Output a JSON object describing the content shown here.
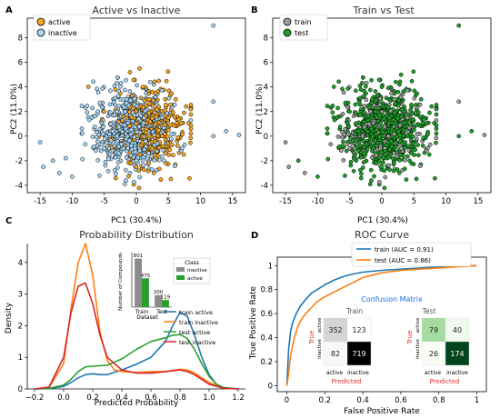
{
  "colors": {
    "active_orange": "#f5a623",
    "inactive_blue": "#a9d6f5",
    "train_gray": "#9e9e9e",
    "test_green": "#1f9e2a",
    "line_blue": "#1f77b4",
    "line_orange": "#ff7f0e",
    "line_green": "#2ca02c",
    "line_red": "#d62728",
    "cm_title_blue": "#1a6fd6",
    "cm_label_red": "#e03030"
  },
  "chart_data": [
    {
      "panel": "A",
      "type": "scatter",
      "title": "Active vs Inactive",
      "xlabel": "PC1 (30.4%)",
      "ylabel": "PC2 (11.0%)",
      "xlim": [
        -17,
        17
      ],
      "ylim": [
        -4.6,
        9.6
      ],
      "xticks": [
        -15,
        -10,
        -5,
        0,
        5,
        10,
        15
      ],
      "yticks": [
        -4,
        -2,
        0,
        2,
        4,
        6,
        8
      ],
      "legend_position": "top-left",
      "series": [
        {
          "name": "active",
          "color": "#f5a623",
          "points": [
            [
              2,
              3
            ],
            [
              3,
              1
            ],
            [
              4,
              2
            ],
            [
              1,
              4
            ],
            [
              0.5,
              5.5
            ],
            [
              3.5,
              4.5
            ],
            [
              2.5,
              -1
            ],
            [
              4,
              0
            ],
            [
              5,
              1.5
            ],
            [
              -1,
              5.2
            ],
            [
              1.5,
              2.5
            ],
            [
              3,
              3.5
            ],
            [
              4.5,
              3
            ],
            [
              2,
              0
            ],
            [
              0,
              1
            ]
          ]
        },
        {
          "name": "inactive",
          "color": "#a9d6f5",
          "points": [
            [
              -3,
              0
            ],
            [
              -5,
              -1
            ],
            [
              -4,
              1
            ],
            [
              -2,
              3
            ],
            [
              0,
              -2
            ],
            [
              -1,
              -3
            ],
            [
              -6,
              2
            ],
            [
              -2,
              -1
            ],
            [
              1,
              -2
            ],
            [
              -3,
              2
            ],
            [
              -15,
              -0.5
            ],
            [
              -14.5,
              -2.5
            ],
            [
              -12,
              -3
            ],
            [
              -13,
              -2
            ],
            [
              -10,
              -3.3
            ],
            [
              -11,
              -1.8
            ],
            [
              12,
              9
            ],
            [
              12,
              2.8
            ],
            [
              14,
              0.4
            ],
            [
              16,
              0.1
            ],
            [
              12,
              0
            ]
          ]
        }
      ]
    },
    {
      "panel": "B",
      "type": "scatter",
      "title": "Train vs Test",
      "xlabel": "PC1 (30.4%)",
      "ylabel": "PC2 (11.0%)",
      "xlim": [
        -17,
        17
      ],
      "ylim": [
        -4.6,
        9.6
      ],
      "xticks": [
        -15,
        -10,
        -5,
        0,
        5,
        10,
        15
      ],
      "yticks": [
        -4,
        -2,
        0,
        2,
        4,
        6,
        8
      ],
      "legend_position": "top-left",
      "series": [
        {
          "name": "train",
          "color": "#9e9e9e",
          "points": [
            [
              -3,
              0
            ],
            [
              -5,
              -1
            ],
            [
              0,
              2
            ],
            [
              2,
              3
            ],
            [
              -2,
              1
            ],
            [
              3,
              -1
            ],
            [
              1,
              0
            ],
            [
              -15,
              -0.5
            ],
            [
              -14.5,
              -2.5
            ],
            [
              -12,
              -3
            ],
            [
              12,
              2.8
            ],
            [
              16,
              0.1
            ]
          ]
        },
        {
          "name": "test",
          "color": "#1f9e2a",
          "points": [
            [
              2,
              1
            ],
            [
              -1,
              2
            ],
            [
              4,
              0
            ],
            [
              -4,
              -2
            ],
            [
              0,
              4
            ],
            [
              3,
              5
            ],
            [
              -13,
              -2
            ],
            [
              -10,
              -3.3
            ],
            [
              12,
              9
            ],
            [
              14,
              0.4
            ],
            [
              12,
              0
            ]
          ]
        }
      ]
    },
    {
      "panel": "C",
      "type": "line",
      "title": "Probability Distribution",
      "xlabel": "Predicted Probability",
      "ylabel": "Density",
      "xlim": [
        -0.25,
        1.25
      ],
      "ylim": [
        0,
        4.6
      ],
      "xticks": [
        -0.2,
        0.0,
        0.2,
        0.4,
        0.6,
        0.8,
        1.0,
        1.2
      ],
      "xtick_labels": [
        "−0.2",
        "0.0",
        "0.2",
        "0.4",
        "0.6",
        "0.8",
        "1.0",
        "1.2"
      ],
      "yticks": [
        0,
        1,
        2,
        3,
        4
      ],
      "legend_position": "center-right",
      "series": [
        {
          "name": "train active",
          "color": "#1f77b4",
          "x": [
            -0.2,
            -0.1,
            0.0,
            0.05,
            0.1,
            0.15,
            0.2,
            0.25,
            0.3,
            0.4,
            0.5,
            0.6,
            0.7,
            0.75,
            0.8,
            0.85,
            0.9,
            0.95,
            1.0,
            1.05,
            1.1,
            1.2
          ],
          "y": [
            0,
            0.01,
            0.08,
            0.2,
            0.35,
            0.45,
            0.48,
            0.45,
            0.45,
            0.6,
            0.78,
            1.0,
            1.5,
            2.0,
            2.42,
            2.3,
            1.7,
            1.0,
            0.45,
            0.15,
            0.04,
            0
          ]
        },
        {
          "name": "train inactive",
          "color": "#ff7f0e",
          "x": [
            -0.2,
            -0.1,
            0.0,
            0.05,
            0.1,
            0.15,
            0.2,
            0.25,
            0.3,
            0.35,
            0.4,
            0.5,
            0.6,
            0.7,
            0.8,
            0.85,
            0.9,
            1.0,
            1.1,
            1.2
          ],
          "y": [
            0,
            0.05,
            0.8,
            2.5,
            4.0,
            4.6,
            3.6,
            1.8,
            0.9,
            0.6,
            0.55,
            0.52,
            0.55,
            0.55,
            0.62,
            0.6,
            0.5,
            0.2,
            0.03,
            0
          ]
        },
        {
          "name": "test active",
          "color": "#2ca02c",
          "x": [
            -0.2,
            -0.1,
            0.0,
            0.05,
            0.1,
            0.15,
            0.2,
            0.3,
            0.4,
            0.5,
            0.6,
            0.7,
            0.75,
            0.8,
            0.85,
            0.9,
            0.95,
            1.0,
            1.05,
            1.1,
            1.2
          ],
          "y": [
            0,
            0.02,
            0.12,
            0.3,
            0.55,
            0.7,
            0.72,
            0.75,
            0.95,
            1.25,
            1.5,
            1.62,
            1.7,
            1.72,
            1.6,
            1.25,
            0.8,
            0.4,
            0.15,
            0.04,
            0
          ]
        },
        {
          "name": "test inactive",
          "color": "#d62728",
          "x": [
            -0.2,
            -0.1,
            0.0,
            0.05,
            0.1,
            0.15,
            0.2,
            0.25,
            0.3,
            0.4,
            0.5,
            0.6,
            0.7,
            0.8,
            0.85,
            0.9,
            1.0,
            1.1,
            1.2
          ],
          "y": [
            0,
            0.06,
            1.0,
            2.4,
            3.25,
            3.35,
            2.7,
            1.7,
            1.0,
            0.6,
            0.5,
            0.5,
            0.55,
            0.6,
            0.55,
            0.45,
            0.15,
            0.02,
            0
          ]
        }
      ],
      "inset": {
        "type": "bar",
        "ylabel": "Number of Compounds",
        "xlabel": "Dataset",
        "categories": [
          "Train",
          "Test"
        ],
        "legend_title": "Class",
        "series": [
          {
            "name": "inactive",
            "color": "#8c8c8c",
            "values": [
              801,
              200
            ]
          },
          {
            "name": "active",
            "color": "#2a9d2a",
            "values": [
              475,
              119
            ]
          }
        ]
      }
    },
    {
      "panel": "D",
      "type": "line",
      "title": "ROC Curve",
      "xlabel": "False Positive Rate",
      "ylabel": "True Positive Rate",
      "xlim": [
        -0.05,
        1.05
      ],
      "ylim": [
        -0.05,
        1.07
      ],
      "xticks": [
        0.0,
        0.2,
        0.4,
        0.6,
        0.8,
        1.0
      ],
      "yticks": [
        0.0,
        0.2,
        0.4,
        0.6,
        0.8,
        1.0
      ],
      "legend_position": "top-right",
      "series": [
        {
          "name": "train (AUC = 0.91)",
          "color": "#1f77b4",
          "x": [
            0,
            0.005,
            0.01,
            0.02,
            0.03,
            0.05,
            0.07,
            0.1,
            0.13,
            0.16,
            0.2,
            0.25,
            0.3,
            0.35,
            0.4,
            0.5,
            0.6,
            0.7,
            0.8,
            0.9,
            1.0
          ],
          "y": [
            0,
            0.15,
            0.3,
            0.45,
            0.52,
            0.6,
            0.66,
            0.72,
            0.77,
            0.8,
            0.84,
            0.88,
            0.91,
            0.93,
            0.945,
            0.96,
            0.97,
            0.98,
            0.99,
            0.995,
            1.0
          ]
        },
        {
          "name": "test (AUC = 0.86)",
          "color": "#ff7f0e",
          "x": [
            0,
            0.01,
            0.02,
            0.04,
            0.06,
            0.08,
            0.1,
            0.13,
            0.16,
            0.2,
            0.25,
            0.3,
            0.35,
            0.4,
            0.45,
            0.5,
            0.6,
            0.7,
            0.8,
            0.9,
            1.0
          ],
          "y": [
            0,
            0.1,
            0.25,
            0.4,
            0.5,
            0.56,
            0.6,
            0.65,
            0.7,
            0.74,
            0.78,
            0.82,
            0.86,
            0.9,
            0.92,
            0.94,
            0.96,
            0.97,
            0.98,
            0.99,
            1.0
          ]
        }
      ],
      "confusion_matrix": {
        "title": "Confusion Matrix",
        "true_label": "True",
        "predicted_label": "Predicted",
        "class_labels": [
          "active",
          "inactive"
        ],
        "matrices": [
          {
            "name": "Train",
            "values": [
              [
                352,
                123
              ],
              [
                82,
                719
              ]
            ],
            "colors": [
              [
                "#d4d4d4",
                "#ffffff"
              ],
              [
                "#f7f7f7",
                "#000000"
              ]
            ]
          },
          {
            "name": "Test",
            "values": [
              [
                79,
                40
              ],
              [
                26,
                174
              ]
            ],
            "colors": [
              [
                "#a5dca0",
                "#f0f9ee"
              ],
              [
                "#f7fcf5",
                "#00441b"
              ]
            ]
          }
        ]
      }
    }
  ],
  "panel_labels": [
    "A",
    "B",
    "C",
    "D"
  ]
}
